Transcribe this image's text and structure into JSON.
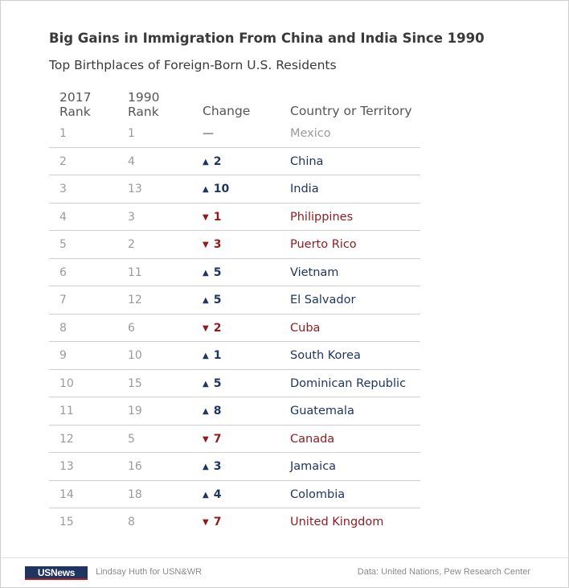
{
  "title": "Big Gains in Immigration From China and India Since 1990",
  "subtitle": "Top Birthplaces of Foreign-Born U.S. Residents",
  "headers": {
    "rank2017_line1": "2017",
    "rank2017_line2": "Rank",
    "rank1990_line1": "1990",
    "rank1990_line2": "Rank",
    "change": "Change",
    "country": "Country or Territory"
  },
  "colors": {
    "up": "#1e3561",
    "down": "#8e1b1f",
    "neutral": "#9a9a9a"
  },
  "chart_data": {
    "type": "table",
    "title": "Big Gains in Immigration From China and India Since 1990",
    "subtitle": "Top Birthplaces of Foreign-Born U.S. Residents",
    "columns": [
      "2017 Rank",
      "1990 Rank",
      "Change",
      "Country or Territory"
    ],
    "rows": [
      {
        "rank_2017": "1",
        "rank_1990": "1",
        "direction": "none",
        "change": "—",
        "country": "Mexico"
      },
      {
        "rank_2017": "2",
        "rank_1990": "4",
        "direction": "up",
        "change": "2",
        "country": "China"
      },
      {
        "rank_2017": "3",
        "rank_1990": "13",
        "direction": "up",
        "change": "10",
        "country": "India"
      },
      {
        "rank_2017": "4",
        "rank_1990": "3",
        "direction": "down",
        "change": "1",
        "country": "Philippines"
      },
      {
        "rank_2017": "5",
        "rank_1990": "2",
        "direction": "down",
        "change": "3",
        "country": "Puerto Rico"
      },
      {
        "rank_2017": "6",
        "rank_1990": "11",
        "direction": "up",
        "change": "5",
        "country": "Vietnam"
      },
      {
        "rank_2017": "7",
        "rank_1990": "12",
        "direction": "up",
        "change": "5",
        "country": "El Salvador"
      },
      {
        "rank_2017": "8",
        "rank_1990": "6",
        "direction": "down",
        "change": "2",
        "country": "Cuba"
      },
      {
        "rank_2017": "9",
        "rank_1990": "10",
        "direction": "up",
        "change": "1",
        "country": "South Korea"
      },
      {
        "rank_2017": "10",
        "rank_1990": "15",
        "direction": "up",
        "change": "5",
        "country": "Dominican Republic"
      },
      {
        "rank_2017": "11",
        "rank_1990": "19",
        "direction": "up",
        "change": "8",
        "country": "Guatemala"
      },
      {
        "rank_2017": "12",
        "rank_1990": "5",
        "direction": "down",
        "change": "7",
        "country": "Canada"
      },
      {
        "rank_2017": "13",
        "rank_1990": "16",
        "direction": "up",
        "change": "3",
        "country": "Jamaica"
      },
      {
        "rank_2017": "14",
        "rank_1990": "18",
        "direction": "up",
        "change": "4",
        "country": "Colombia"
      },
      {
        "rank_2017": "15",
        "rank_1990": "8",
        "direction": "down",
        "change": "7",
        "country": "United Kingdom"
      }
    ]
  },
  "footer": {
    "logo_text": "USNews",
    "credit": "Lindsay Huth for USN&WR",
    "source": "Data: United Nations, Pew Research Center"
  }
}
